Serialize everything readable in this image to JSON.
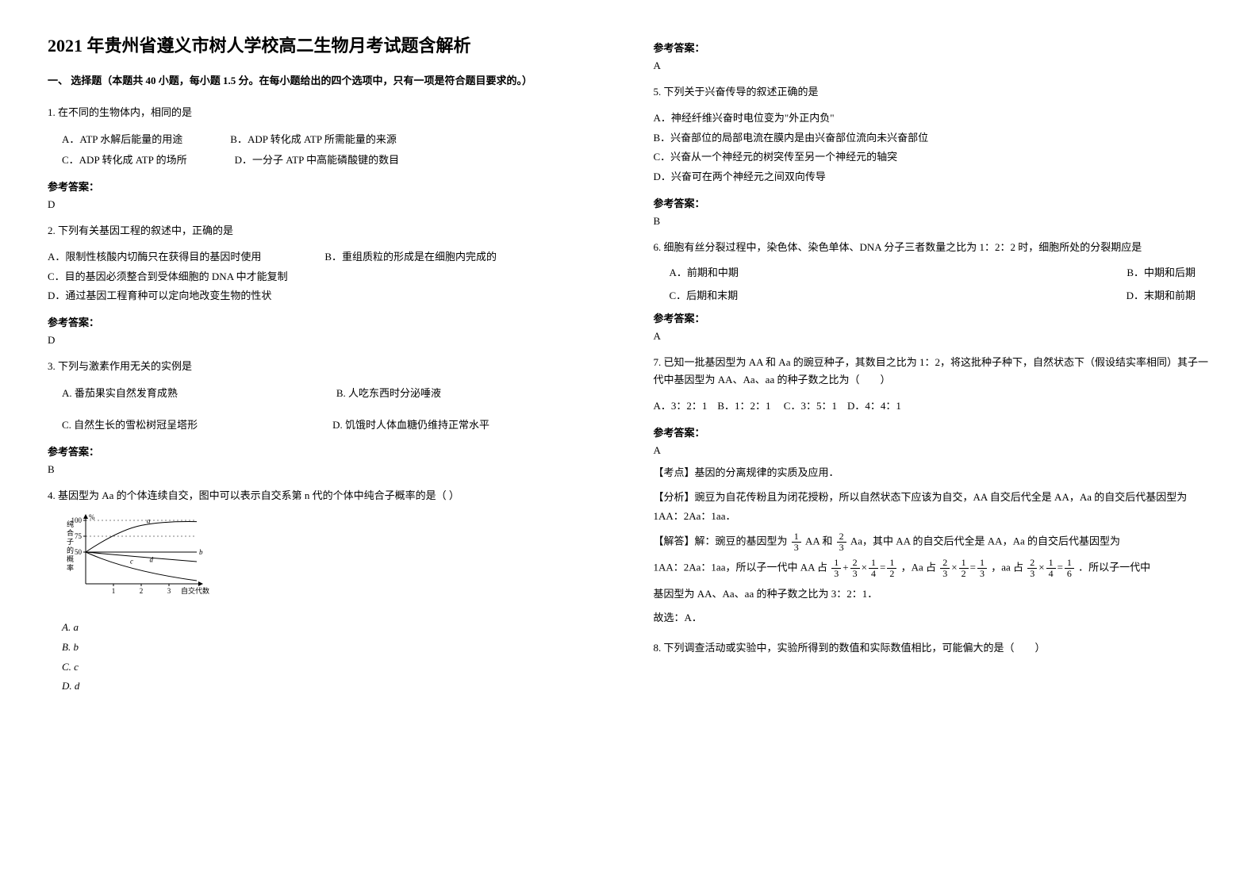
{
  "doc": {
    "title": "2021 年贵州省遵义市树人学校高二生物月考试题含解析",
    "section1": "一、 选择题（本题共 40 小题，每小题 1.5 分。在每小题给出的四个选项中，只有一项是符合题目要求的。）",
    "ansLabel": "参考答案："
  },
  "q1": {
    "stem": "1. 在不同的生物体内，相同的是",
    "A": "A．ATP 水解后能量的用途",
    "B": "B．ADP 转化成 ATP 所需能量的来源",
    "C": "C．ADP 转化成 ATP 的场所",
    "D": "D．一分子 ATP 中高能磷酸键的数目",
    "ans": "D"
  },
  "q2": {
    "stem": "2. 下列有关基因工程的叙述中，正确的是",
    "A": "A．限制性核酸内切酶只在获得目的基因时使用",
    "B": "B．重组质粒的形成是在细胞内完成的",
    "C": "C．目的基因必须整合到受体细胞的 DNA 中才能复制",
    "D": "D．通过基因工程育种可以定向地改变生物的性状",
    "ans": "D"
  },
  "q3": {
    "stem": "3. 下列与激素作用无关的实例是",
    "A": "A. 番茄果实自然发育成熟",
    "B": "B. 人吃东西时分泌唾液",
    "C": "C. 自然生长的雪松树冠呈塔形",
    "D": "D. 饥饿时人体血糖仍维持正常水平",
    "ans": "B"
  },
  "q4": {
    "stem": "4. 基因型为 Aa 的个体连续自交，图中可以表示自交系第 n 代的个体中纯合子概率的是（ ）",
    "A": "A. a",
    "B": "B. b",
    "C": "C. c",
    "D": "D. d",
    "ans": "A",
    "chart": {
      "yLabel": "纯合子的概率",
      "yUnit": "%",
      "yTicks": [
        50,
        75,
        100
      ],
      "xTicks": [
        1,
        2,
        3
      ],
      "xLabel": "自交代数",
      "curves": [
        "a",
        "b",
        "c",
        "d"
      ],
      "width": 180,
      "height": 110,
      "axisColor": "#000000",
      "lineColor": "#000000",
      "bg": "#ffffff",
      "fontSize": 9
    }
  },
  "q5": {
    "stem": "5. 下列关于兴奋传导的叙述正确的是",
    "A": "A．神经纤维兴奋时电位变为\"外正内负\"",
    "B": "B．兴奋部位的局部电流在膜内是由兴奋部位流向未兴奋部位",
    "C": "C．兴奋从一个神经元的树突传至另一个神经元的轴突",
    "D": "D．兴奋可在两个神经元之间双向传导",
    "ans": "B"
  },
  "q6": {
    "stem": "6. 细胞有丝分裂过程中，染色体、染色单体、DNA 分子三者数量之比为 1：2：2 时，细胞所处的分裂期应是",
    "A": "A．前期和中期",
    "B": "B．中期和后期",
    "C": "C．后期和末期",
    "D": "D．末期和前期",
    "ans": "A"
  },
  "q7": {
    "stem": "7. 已知一批基因型为 AA 和 Aa 的豌豆种子，其数目之比为 1：2，将这批种子种下，自然状态下（假设结实率相同）其子一代中基因型为 AA、Aa、aa 的种子数之比为（　　）",
    "optsLine": "A．3：2：1　B．1：2：1 　C．3：5：1　D．4：4：1 ",
    "ans": "A",
    "expl": {
      "kd": "【考点】基因的分离规律的实质及应用．",
      "fx": "【分析】豌豆为自花传粉且为闭花授粉，所以自然状态下应该为自交，AA 自交后代全是 AA，Aa 的自交后代基因型为 1AA：2Aa：1aa．",
      "jd1_pre": "【解答】解：豌豆的基因型为",
      "jd1_mid1": "AA 和",
      "jd1_mid2": "Aa，其中 AA 的自交后代全是 AA，Aa 的自交后代基因型为",
      "jd2_pre": "1AA：2Aa：1aa，所以子一代中 AA 占",
      "jd2_mid1": "，Aa 占",
      "jd2_mid2": "，aa 占",
      "jd2_post": "．所以子一代中",
      "jd3": "基因型为 AA、Aa、aa 的种子数之比为 3：2：1．",
      "gx": "故选：A．"
    }
  },
  "q8": {
    "stem": "8. 下列调查活动或实验中，实验所得到的数值和实际数值相比，可能偏大的是（　　）"
  }
}
